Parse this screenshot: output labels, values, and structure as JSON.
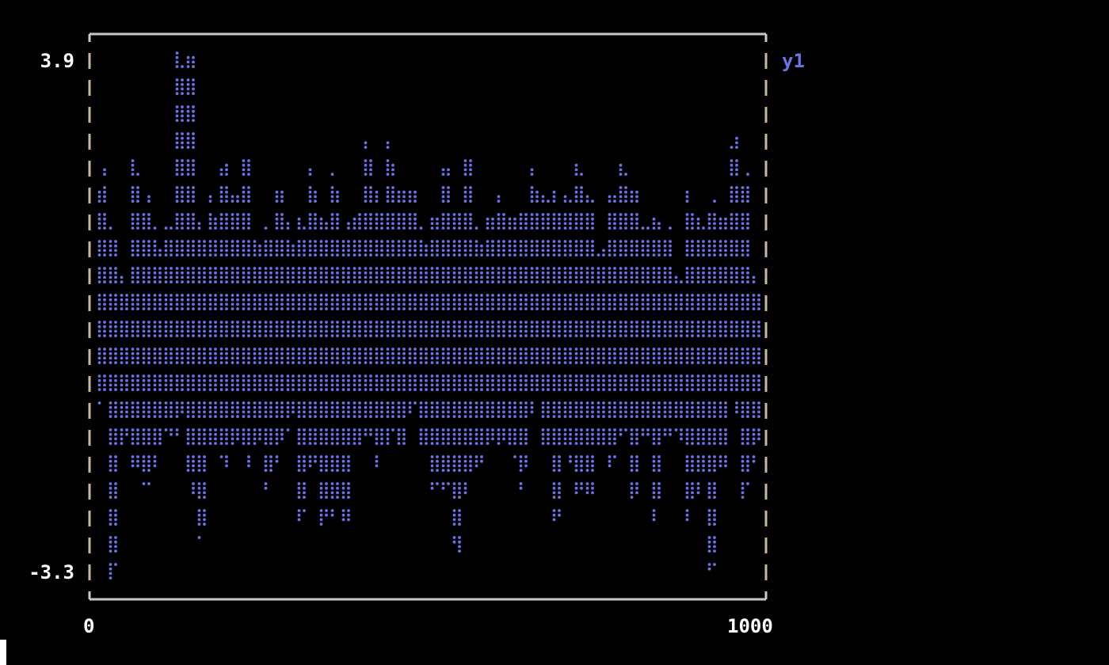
{
  "chart_data": {
    "type": "line",
    "render": "braille terminal plot",
    "xlim": [
      0,
      1000
    ],
    "ylim": [
      -3.3,
      3.9
    ],
    "x_tick_labels": [
      "0",
      "1000"
    ],
    "y_tick_labels": [
      "3.9",
      "-3.3"
    ],
    "grid": false,
    "legend": "right",
    "series": [
      {
        "name": "y1",
        "color": "#6b73ea",
        "x_bins": 60,
        "bin_max": [
          2.29,
          1.48,
          0.84,
          2.4,
          1.91,
          1.48,
          1.59,
          3.86,
          3.9,
          1.59,
          1.91,
          2.4,
          1.91,
          2.61,
          1.37,
          1.48,
          1.97,
          1.53,
          1.64,
          2.29,
          1.59,
          2.29,
          1.64,
          1.86,
          2.61,
          2.02,
          2.61,
          2.02,
          1.97,
          1.48,
          1.59,
          2.24,
          2.02,
          2.4,
          1.48,
          1.64,
          1.91,
          1.64,
          1.75,
          2.24,
          1.91,
          1.97,
          2.02,
          2.34,
          1.91,
          1.37,
          1.91,
          2.4,
          2.02,
          1.64,
          1.64,
          1.48,
          0.83,
          1.97,
          1.64,
          1.97,
          1.59,
          2.69,
          2.29,
          0.78
        ],
        "bin_min": [
          -0.95,
          -3.3,
          -1.44,
          -1.71,
          -2.08,
          -1.76,
          -1.44,
          -1.33,
          -2.14,
          -2.79,
          -1.44,
          -1.76,
          -1.44,
          -1.76,
          -1.44,
          -2.03,
          -1.65,
          -1.22,
          -2.52,
          -1.76,
          -2.57,
          -2.52,
          -2.46,
          -1.49,
          -1.33,
          -1.71,
          -1.44,
          -1.44,
          -1.0,
          -1.49,
          -2.03,
          -2.03,
          -2.89,
          -2.14,
          -1.76,
          -1.65,
          -1.44,
          -1.76,
          -2.03,
          -1.0,
          -1.44,
          -2.52,
          -1.76,
          -2.08,
          -2.08,
          -1.71,
          -1.76,
          -1.44,
          -2.19,
          -1.44,
          -2.46,
          -1.44,
          -1.38,
          -2.46,
          -2.14,
          -3.27,
          -1.76,
          -1.0,
          -2.19,
          -1.65
        ]
      }
    ],
    "frame_color": "#c8c8c8",
    "side_color": "#c9b79c"
  }
}
